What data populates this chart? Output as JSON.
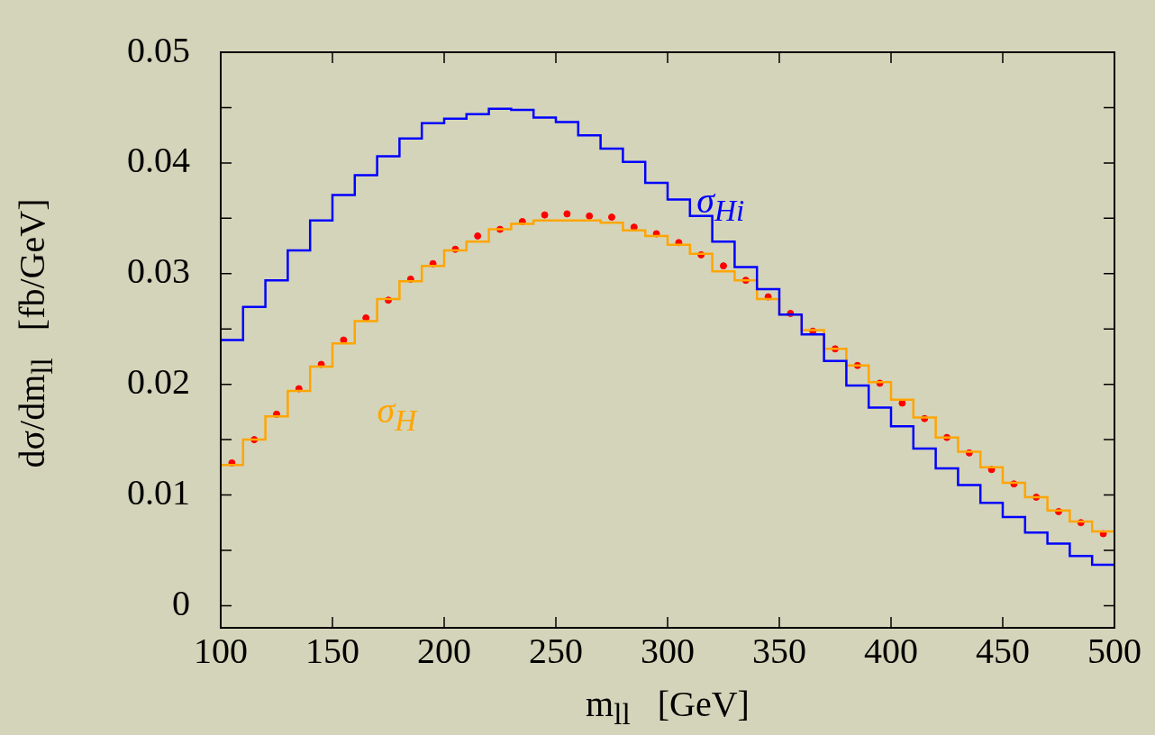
{
  "chart_data": {
    "type": "histogram",
    "xlabel": "m$_{ll}$   [GeV]",
    "ylabel": "dσ/dm$_{ll}$   [fb/GeV]",
    "bins": [
      100,
      110,
      120,
      130,
      140,
      150,
      160,
      170,
      180,
      190,
      200,
      210,
      220,
      230,
      240,
      250,
      260,
      270,
      280,
      290,
      300,
      310,
      320,
      330,
      340,
      350,
      360,
      370,
      380,
      390,
      400,
      410,
      420,
      430,
      440,
      450,
      460,
      470,
      480,
      490,
      500
    ],
    "series": [
      {
        "name": "σ$_{Hi}$",
        "color": "#0000ff",
        "values": [
          0.024,
          0.027,
          0.0294,
          0.0321,
          0.0348,
          0.0371,
          0.0389,
          0.0406,
          0.0422,
          0.0436,
          0.044,
          0.0444,
          0.0449,
          0.0448,
          0.0441,
          0.0437,
          0.0425,
          0.0413,
          0.0401,
          0.0382,
          0.0367,
          0.0352,
          0.0329,
          0.0306,
          0.0286,
          0.0263,
          0.0245,
          0.0221,
          0.0199,
          0.0179,
          0.0162,
          0.0142,
          0.0124,
          0.0109,
          0.0093,
          0.008,
          0.0066,
          0.0056,
          0.0045,
          0.0037
        ]
      },
      {
        "name": "σ$_{H}$",
        "color": "#ffa500",
        "values": [
          0.0127,
          0.015,
          0.0171,
          0.0194,
          0.0216,
          0.0237,
          0.0257,
          0.0277,
          0.0293,
          0.0307,
          0.0321,
          0.0329,
          0.034,
          0.0345,
          0.0348,
          0.0348,
          0.0348,
          0.0346,
          0.0339,
          0.0334,
          0.0326,
          0.0318,
          0.0302,
          0.0294,
          0.0277,
          0.0263,
          0.0249,
          0.0232,
          0.0217,
          0.0202,
          0.0186,
          0.017,
          0.0152,
          0.0139,
          0.0125,
          0.0111,
          0.0098,
          0.0086,
          0.0076,
          0.0067
        ]
      },
      {
        "type": "scatter",
        "color": "#ff0000",
        "marker": "circle",
        "x": [
          105,
          115,
          125,
          135,
          145,
          155,
          165,
          175,
          185,
          195,
          205,
          215,
          225,
          235,
          245,
          255,
          265,
          275,
          285,
          295,
          305,
          315,
          325,
          335,
          345,
          355,
          365,
          375,
          385,
          395,
          405,
          415,
          425,
          435,
          445,
          455,
          465,
          475,
          485,
          495
        ],
        "values": [
          0.0129,
          0.015,
          0.0173,
          0.0196,
          0.0218,
          0.024,
          0.026,
          0.0276,
          0.0295,
          0.0309,
          0.0322,
          0.0334,
          0.034,
          0.0347,
          0.0353,
          0.0354,
          0.0352,
          0.0351,
          0.0342,
          0.0336,
          0.0328,
          0.0317,
          0.0307,
          0.0294,
          0.0279,
          0.0264,
          0.0248,
          0.0232,
          0.0217,
          0.0201,
          0.0183,
          0.0169,
          0.0152,
          0.0138,
          0.0123,
          0.011,
          0.0098,
          0.0085,
          0.0075,
          0.0065
        ]
      }
    ],
    "xlim": [
      100,
      500
    ],
    "xticks": [
      100,
      150,
      200,
      250,
      300,
      350,
      400,
      450,
      500
    ],
    "ylim": [
      -0.002,
      0.05
    ],
    "yticks": [
      0,
      {
        "value": 0.005,
        "label": null
      },
      0.01,
      {
        "value": 0.015,
        "label": null
      },
      0.02,
      {
        "value": 0.025,
        "label": null
      },
      0.03,
      {
        "value": 0.035,
        "label": null
      },
      0.04,
      {
        "value": 0.045,
        "label": null
      },
      0.05
    ],
    "legend": false
  }
}
